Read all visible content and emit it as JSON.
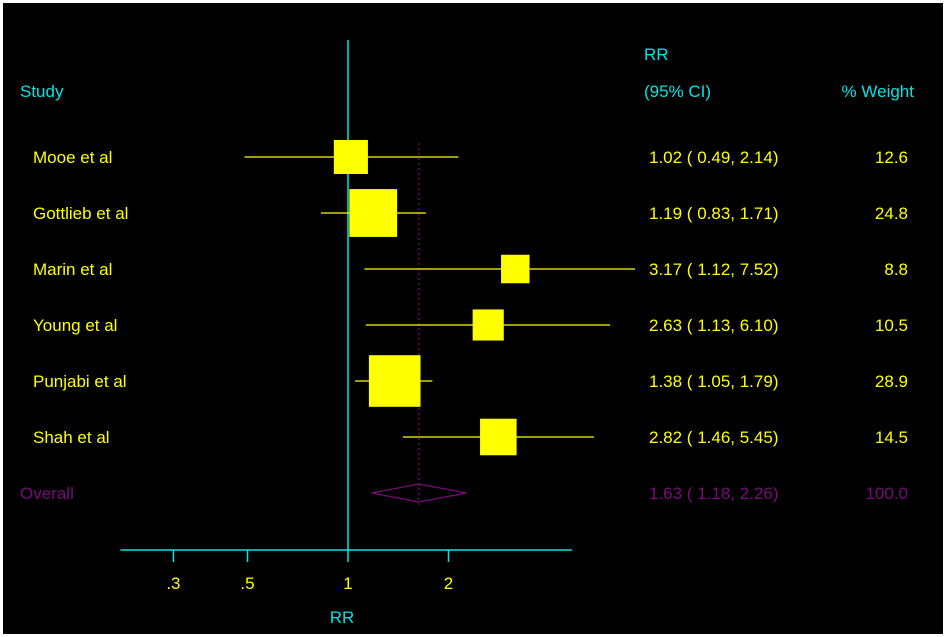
{
  "colors": {
    "background": "#000000",
    "frame": "#ffffff",
    "axis": "#00e5e5",
    "study": "#ffff00",
    "overall": "#7b0a7b"
  },
  "chart_data": {
    "type": "forest",
    "xlabel": "RR",
    "x_scale": "log",
    "xlim": [
      0.22,
      4.5
    ],
    "x_ticks": [
      {
        "value": 0.3,
        "label": ".3"
      },
      {
        "value": 0.5,
        "label": ".5"
      },
      {
        "value": 1,
        "label": "1"
      },
      {
        "value": 2,
        "label": "2"
      }
    ],
    "reference_line": 1,
    "header": {
      "study": "Study",
      "rr": "RR",
      "ci": "(95% CI)",
      "weight": "% Weight"
    },
    "studies": [
      {
        "name": "Mooe et al",
        "rr": 1.02,
        "lower": 0.49,
        "upper": 2.14,
        "weight": 12.6,
        "ci_text": "1.02 ( 0.49, 2.14)",
        "weight_text": "12.6"
      },
      {
        "name": "Gottlieb et al",
        "rr": 1.19,
        "lower": 0.83,
        "upper": 1.71,
        "weight": 24.8,
        "ci_text": "1.19 ( 0.83, 1.71)",
        "weight_text": "24.8"
      },
      {
        "name": "Marin et al",
        "rr": 3.17,
        "lower": 1.12,
        "upper": 7.52,
        "weight": 8.8,
        "ci_text": "3.17 ( 1.12, 7.52)",
        "weight_text": "8.8"
      },
      {
        "name": "Young et al",
        "rr": 2.63,
        "lower": 1.13,
        "upper": 6.1,
        "weight": 10.5,
        "ci_text": "2.63 ( 1.13, 6.10)",
        "weight_text": "10.5"
      },
      {
        "name": "Punjabi et al",
        "rr": 1.38,
        "lower": 1.05,
        "upper": 1.79,
        "weight": 28.9,
        "ci_text": "1.38 ( 1.05, 1.79)",
        "weight_text": "28.9"
      },
      {
        "name": "Shah et al",
        "rr": 2.82,
        "lower": 1.46,
        "upper": 5.45,
        "weight": 14.5,
        "ci_text": "2.82 ( 1.46, 5.45)",
        "weight_text": "14.5"
      }
    ],
    "overall": {
      "name": "Overall",
      "rr": 1.63,
      "lower": 1.18,
      "upper": 2.26,
      "weight": 100.0,
      "ci_text": "1.63 ( 1.18, 2.26)",
      "weight_text": "100.0"
    }
  }
}
